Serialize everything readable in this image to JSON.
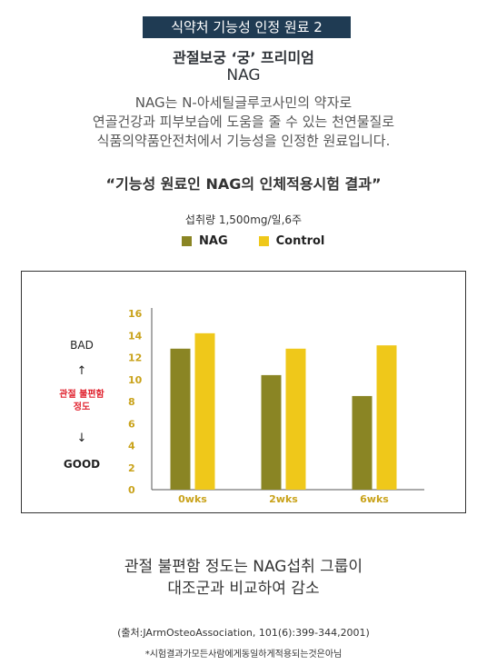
{
  "header": {
    "badge": "식약처 기능성 인정 원료 2",
    "title_line1": "관절보궁 ‘궁’ 프리미엄",
    "title_line2": "NAG"
  },
  "description": [
    "NAG는 N-아세틸글루코사민의 약자로",
    "연골건강과 피부보습에 도움을 줄 수 있는 천연물질로",
    "식품의약품안전처에서 기능성을 인정한 원료입니다."
  ],
  "quote": "“기능성 원료인 NAG의 인체적용시험 결과”",
  "intake": "섭취량 1,500mg/일,6주",
  "colors": {
    "badge_bg": "#1f3b53",
    "nag": "#8a8524",
    "control": "#efc81a",
    "axis_text": "#c9a21a",
    "red_label": "#e0232f"
  },
  "chart_data": {
    "type": "bar",
    "categories": [
      "0wks",
      "2wks",
      "6wks"
    ],
    "series": [
      {
        "name": "NAG",
        "values": [
          12.8,
          10.4,
          8.5
        ]
      },
      {
        "name": "Control",
        "values": [
          14.2,
          12.8,
          13.1
        ]
      }
    ],
    "ylim": [
      0,
      16
    ],
    "yticks": [
      0,
      2,
      4,
      6,
      8,
      10,
      12,
      14,
      16
    ],
    "ylabel_top": "BAD",
    "ylabel_middle": "관절 불편함 정도",
    "ylabel_bottom": "GOOD",
    "legend_position": "top",
    "grid": false
  },
  "conclusion": [
    "관절 불편함 정도는 NAG섭취 그룹이",
    "대조군과 비교하여 감소"
  ],
  "source": "(출처:JArmOsteoAssociation, 101(6):399-344,2001)",
  "note": "*시험결과가모든사람에게동일하게적용되는것은아님"
}
